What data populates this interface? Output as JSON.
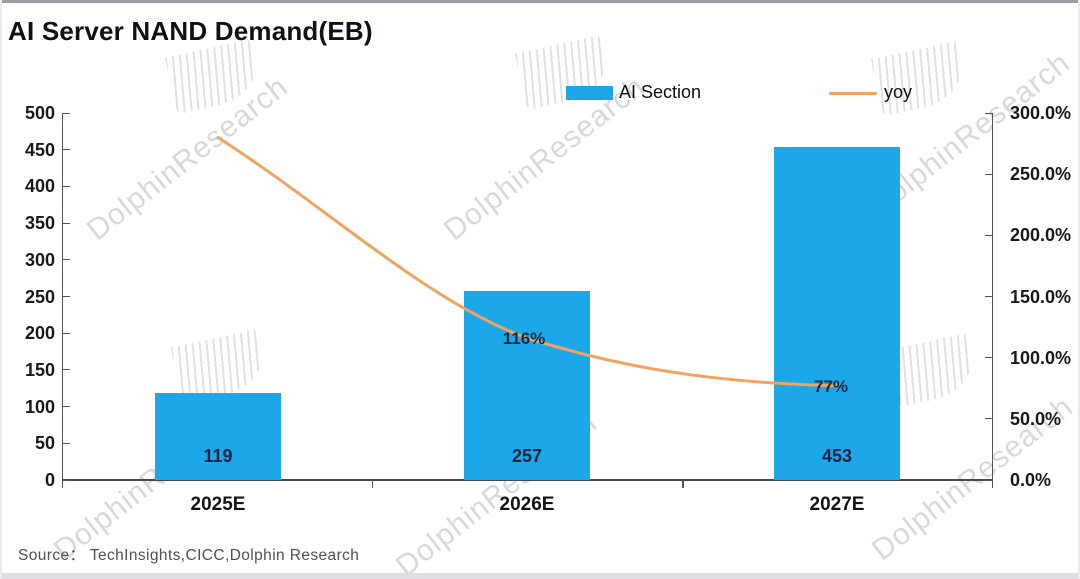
{
  "title": "AI Server NAND Demand(EB)",
  "legend": {
    "items": [
      {
        "label": "AI Section",
        "marker": "bar-swatch",
        "color": "#1BA7E8"
      },
      {
        "label": "yoy",
        "marker": "line-swatch",
        "color": "#F0A45F"
      }
    ]
  },
  "chart_data": {
    "type": "bar+line combo",
    "categories": [
      "2025E",
      "2026E",
      "2027E"
    ],
    "series": [
      {
        "name": "AI Section",
        "type": "bar",
        "axis": "left",
        "color": "#1BA7E8",
        "values": [
          119,
          257,
          453
        ],
        "data_labels": [
          "119",
          "257",
          "453"
        ]
      },
      {
        "name": "yoy",
        "type": "line",
        "axis": "right",
        "color": "#F0A45F",
        "values_percent": [
          280,
          116,
          77
        ],
        "data_labels": [
          "",
          "116%",
          "77%"
        ],
        "note": "2025E point is unlabeled; ~280% estimated from plot position"
      }
    ],
    "left_axis": {
      "min": 0,
      "max": 500,
      "tick_labels": [
        "500",
        "450",
        "400",
        "350",
        "300",
        "250",
        "200",
        "150",
        "100",
        "50",
        "0"
      ]
    },
    "right_axis": {
      "min": 0,
      "max": 300,
      "tick_labels": [
        "300.0%",
        "250.0%",
        "200.0%",
        "150.0%",
        "100.0%",
        "50.0%",
        "0.0%"
      ]
    },
    "grid": "off",
    "legend_position": "top-right"
  },
  "source": "Source： TechInsights,CICC,Dolphin  Research",
  "watermark": {
    "text": "DolphinResearch"
  },
  "colors": {
    "bar": "#1BA7E8",
    "line": "#F0A45F",
    "title_text": "#10101c",
    "axis_text": "#18181c",
    "source_text": "#505055",
    "watermark_text": "#acaeba"
  }
}
